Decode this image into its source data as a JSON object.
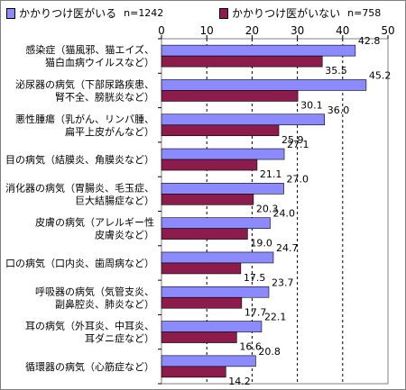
{
  "chart_data": {
    "type": "bar",
    "orientation": "horizontal",
    "xlim": [
      0,
      50
    ],
    "xticks": [
      0,
      10,
      20,
      30,
      40,
      50
    ],
    "grid": "vertical dashed",
    "legend_position": "top",
    "categories": [
      [
        "感染症（猫風邪、猫エイズ、",
        "猫白血病ウイルスなど）"
      ],
      [
        "泌尿器の病気（下部尿路疾患、",
        "腎不全、膀胱炎など）"
      ],
      [
        "悪性腫瘍（乳がん、リンパ腫、",
        "扁平上皮がんなど）"
      ],
      [
        "目の病気（結膜炎、角膜炎など）"
      ],
      [
        "消化器の病気（胃腸炎、毛玉症、",
        "巨大結腸症など）"
      ],
      [
        "皮膚の病気（アレルギー性",
        "皮膚炎など）"
      ],
      [
        "口の病気（口内炎、歯周病など）"
      ],
      [
        "呼吸器の病気（気管支炎、",
        "副鼻腔炎、肺炎など）"
      ],
      [
        "耳の病気（外耳炎、中耳炎、",
        "耳ダニ症など）"
      ],
      [
        "循環器の病気（心筋症など）"
      ]
    ],
    "series": [
      {
        "name": "かかりつけ医がいる",
        "n_label": "n=1242",
        "color": "#8b8bff",
        "values": [
          42.8,
          45.2,
          36.0,
          27.1,
          27.0,
          24.0,
          24.7,
          23.7,
          22.1,
          20.8
        ]
      },
      {
        "name": "かかりつけ医がいない",
        "n_label": "n=758",
        "color": "#8b1c4c",
        "values": [
          35.5,
          30.1,
          25.9,
          21.1,
          20.3,
          19.0,
          17.5,
          17.7,
          16.6,
          14.2
        ]
      }
    ]
  }
}
